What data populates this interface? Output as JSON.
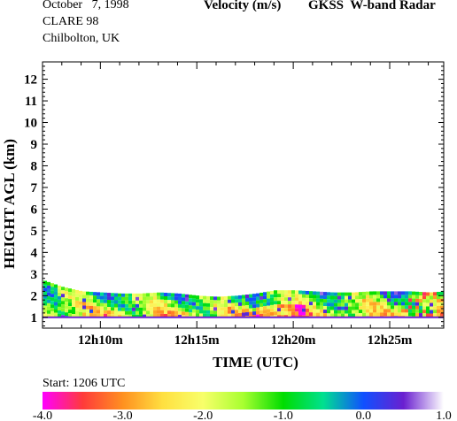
{
  "header": {
    "date": "October   7, 1998",
    "campaign": "CLARE 98",
    "site": "Chilbolton, UK",
    "quantity": "Velocity (m/s)",
    "instrument": "GKSS  W-band Radar"
  },
  "footer": {
    "start": "Start: 1206 UTC"
  },
  "chart_data": {
    "type": "heatmap",
    "title": "Velocity (m/s)",
    "xlabel": "TIME (UTC)",
    "ylabel": "HEIGHT AGL (km)",
    "x_ticks": [
      "12h10m",
      "12h15m",
      "12h20m",
      "12h25m"
    ],
    "x_tick_minutes": [
      10,
      15,
      20,
      25
    ],
    "xlim_minutes": [
      7,
      27.8
    ],
    "y_ticks": [
      1,
      2,
      3,
      4,
      5,
      6,
      7,
      8,
      9,
      10,
      11,
      12
    ],
    "ylim": [
      0.5,
      12.8
    ],
    "grid": false,
    "layer": {
      "base_km": 1.0,
      "top_km": [
        2.7,
        2.4,
        2.2,
        2.15,
        2.1,
        2.1,
        2.15,
        2.1,
        2.0,
        1.95,
        2.0,
        2.1,
        2.25,
        2.25,
        2.2,
        2.15,
        2.15,
        2.2,
        2.2,
        2.2,
        2.15,
        2.2
      ],
      "top_times_minutes": [
        7,
        8,
        9,
        10,
        11,
        12,
        13,
        14,
        15,
        16,
        17,
        18,
        19,
        20,
        21,
        22,
        23,
        24,
        25,
        26,
        27,
        27.8
      ]
    },
    "colorbar": {
      "ticks": [
        "-4.0",
        "-3.0",
        "-2.0",
        "-1.0",
        "0.0",
        "1.0"
      ],
      "range": [
        -4.0,
        1.0
      ],
      "colors": [
        "#ff00ff",
        "#ff3a3a",
        "#ff9020",
        "#ffe040",
        "#f8ff6a",
        "#a8ff30",
        "#00dd00",
        "#00e090",
        "#1050ff",
        "#6a20d0",
        "#ffffff"
      ]
    }
  }
}
